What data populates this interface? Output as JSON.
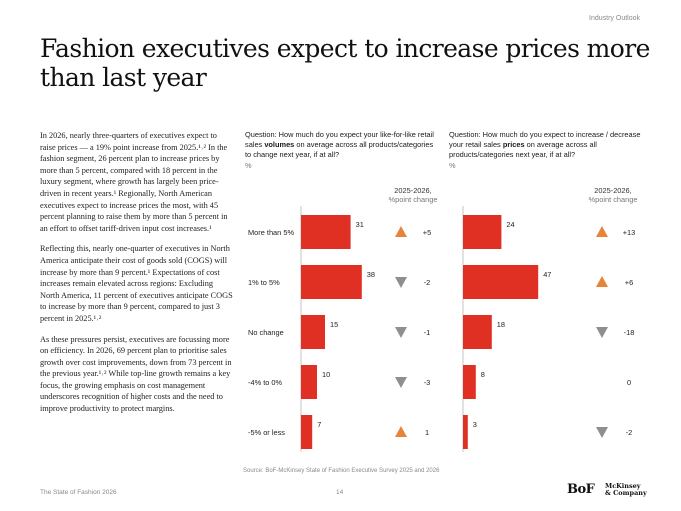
{
  "header": {
    "section_tag": "Industry Outlook",
    "title": "Fashion executives expect to increase prices more than last year"
  },
  "body": {
    "paragraphs": [
      "In 2026, nearly three-quarters of executives expect to raise prices — a 19% point increase from 2025.¹˒² In the fashion segment, 26 percent plan to increase prices by more than 5 percent, compared with 18 percent in the luxury segment, where growth has largely been price-driven in recent years.¹ Regionally, North American executives expect to increase prices the most, with 45 percent planning to raise them by more than 5 percent in an effort to offset tariff-driven input cost increases.¹",
      "Reflecting this, nearly one-quarter of executives in North America anticipate their cost of goods sold (COGS) will increase by more than 9 percent.¹ Expectations of cost increases remain elevated across regions: Excluding North America, 11 percent of executives anticipate COGS to increase by more than 9 percent, compared to just 3 percent in 2025.¹˒²",
      "As these pressures persist, executives are focussing more on efficiency. In 2026, 69 percent plan to prioritise sales growth over cost improvements, down from 73 percent in the previous year.¹˒² While top-line growth remains a key focus, the growing emphasis on cost management underscores recognition of higher costs and the need to improve productivity to protect margins."
    ]
  },
  "charts": {
    "volumes": {
      "question_before": "Question: How much do you expect your like-for-like retail sales ",
      "question_bold": "volumes",
      "question_after": " on average across all products/categories to change next year, if at all?",
      "unit": "%",
      "change_header_line1": "2025-2026,",
      "change_header_line2": "%point change"
    },
    "prices": {
      "question_before": "Question: How much do you expect to increase / decrease your retail sales ",
      "question_bold": "prices",
      "question_after": " on average across all products/categories next year, if at all?",
      "unit": "%",
      "change_header_line1": "2025-2026,",
      "change_header_line2": "%point change"
    }
  },
  "chart_data": [
    {
      "type": "bar",
      "orientation": "horizontal",
      "title": "Question: How much do you expect your like-for-like retail sales volumes on average across all products/categories to change next year, if at all?",
      "unit": "%",
      "categories": [
        "More than 5%",
        "1% to 5%",
        "No change",
        "-4% to 0%",
        "-5% or less"
      ],
      "values": [
        31,
        38,
        15,
        10,
        7
      ],
      "change_label": "2025-2026, %point change",
      "change": [
        5,
        -2,
        -1,
        -3,
        1
      ],
      "change_display": [
        "+5",
        "-2",
        "-1",
        "-3",
        "1"
      ],
      "change_direction": [
        "up",
        "down",
        "down",
        "down",
        "up"
      ],
      "xlim": [
        0,
        50
      ],
      "colors": {
        "bar": "#e03023",
        "up": "#e8833a",
        "down": "#8f8f8f"
      }
    },
    {
      "type": "bar",
      "orientation": "horizontal",
      "title": "Question: How much do you expect to increase / decrease your retail sales prices on average across all products/categories next year, if at all?",
      "unit": "%",
      "categories": [
        "More than 5%",
        "1% to 5%",
        "No change",
        "-4% to 0%",
        "-5% or less"
      ],
      "values": [
        24,
        47,
        18,
        8,
        3
      ],
      "change_label": "2025-2026, %point change",
      "change": [
        13,
        6,
        -18,
        0,
        -2
      ],
      "change_display": [
        "+13",
        "+6",
        "-18",
        "0",
        "-2"
      ],
      "change_direction": [
        "up",
        "up",
        "down",
        "none",
        "down"
      ],
      "xlim": [
        0,
        50
      ],
      "colors": {
        "bar": "#e03023",
        "up": "#e8833a",
        "down": "#8f8f8f"
      }
    }
  ],
  "source": "Source: BoF-McKinsey State of Fashion Executive Survey 2025 and 2026",
  "footer": {
    "publication": "The State of Fashion 2026",
    "page_number": "14",
    "logo_bof": "BoF",
    "logo_mckinsey_line1": "McKinsey",
    "logo_mckinsey_line2": "& Company"
  }
}
